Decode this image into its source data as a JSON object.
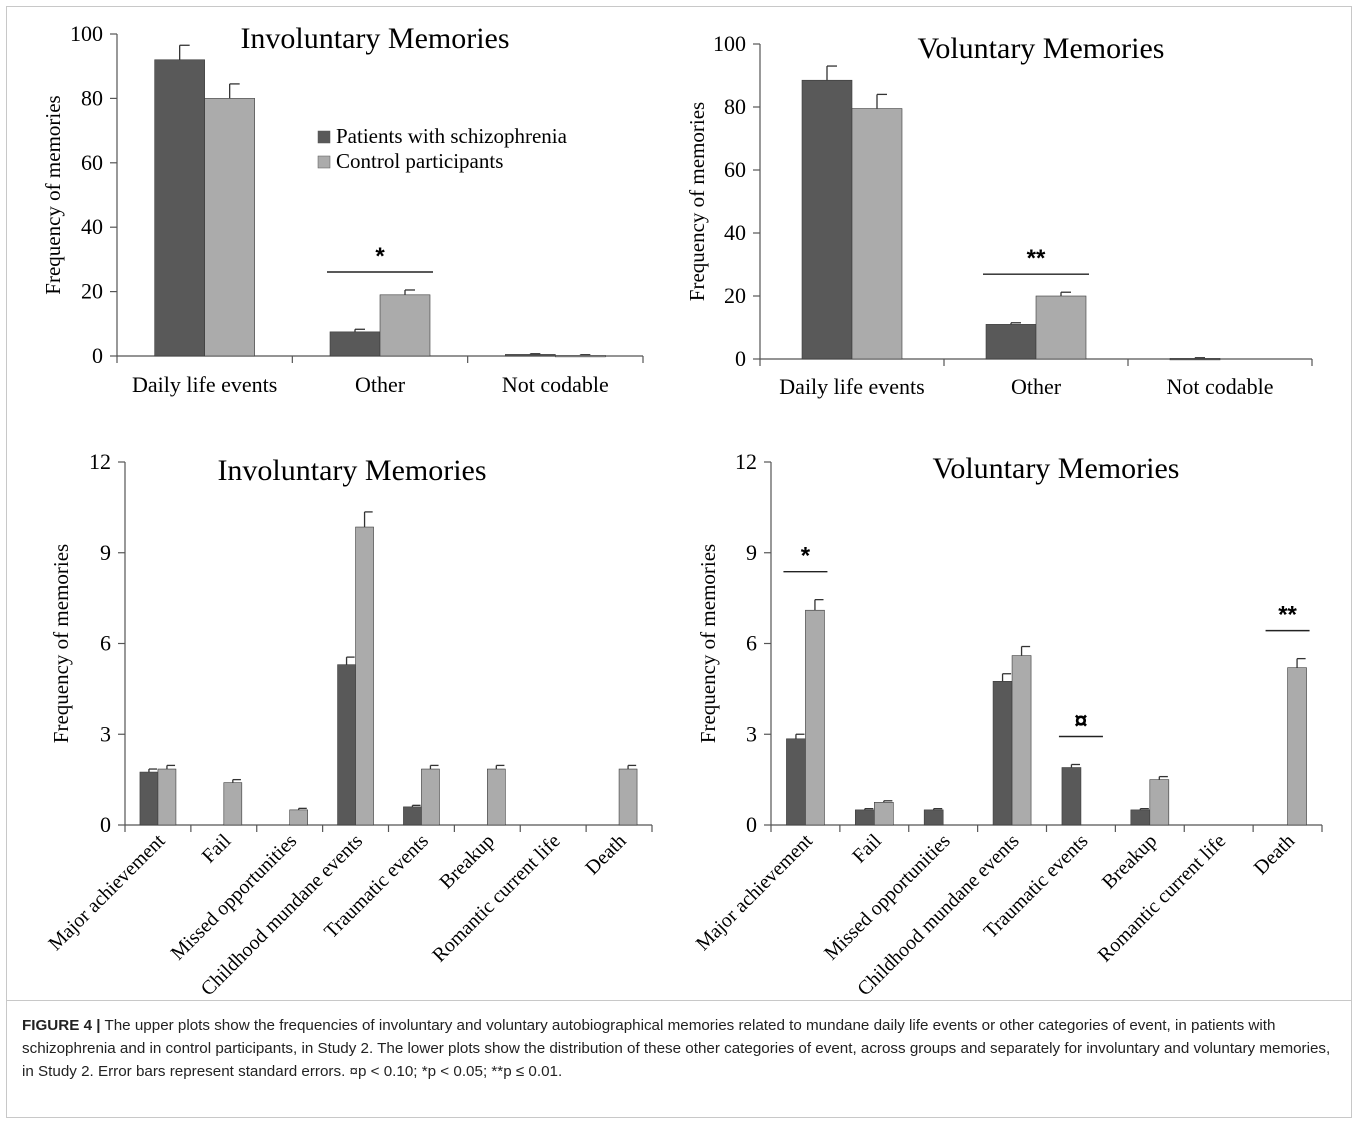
{
  "colors": {
    "patients": "#595959",
    "controls": "#ababab",
    "axis": "#555555",
    "text": "#000000"
  },
  "legend": {
    "patients": "Patients with schizophrenia",
    "controls": "Control participants"
  },
  "chart_data": [
    {
      "type": "bar",
      "title": "Involuntary Memories",
      "ylabel": "Frequency of memories",
      "ylim": [
        0,
        100
      ],
      "yticks": [
        "0",
        "20",
        "40",
        "60",
        "80",
        "100"
      ],
      "categories": [
        "Daily life events",
        "Other",
        "Not codable"
      ],
      "series": [
        {
          "name": "Patients with schizophrenia",
          "values": [
            92,
            7.5,
            0.5
          ],
          "errors": [
            4.5,
            0.8,
            0.2
          ]
        },
        {
          "name": "Control participants",
          "values": [
            80,
            19,
            0.2
          ],
          "errors": [
            4.5,
            1.5,
            0.2
          ]
        }
      ],
      "significance": [
        {
          "category": "Other",
          "label": "*"
        }
      ],
      "legend": "inside-upper-right"
    },
    {
      "type": "bar",
      "title": "Voluntary Memories",
      "ylabel": "Frequency of memories",
      "ylim": [
        0,
        100
      ],
      "yticks": [
        "0",
        "20",
        "40",
        "60",
        "80",
        "100"
      ],
      "categories": [
        "Daily life events",
        "Other",
        "Not codable"
      ],
      "series": [
        {
          "name": "Patients with schizophrenia",
          "values": [
            88.5,
            11,
            0.2
          ],
          "errors": [
            4.5,
            0.5,
            0.2
          ]
        },
        {
          "name": "Control participants",
          "values": [
            79.5,
            20,
            0
          ],
          "errors": [
            4.5,
            1.2,
            0
          ]
        }
      ],
      "significance": [
        {
          "category": "Other",
          "label": "**"
        }
      ]
    },
    {
      "type": "bar",
      "title": "Involuntary Memories",
      "ylabel": "Frequency of memories",
      "ylim": [
        0,
        12
      ],
      "yticks": [
        "0",
        "3",
        "6",
        "9",
        "12"
      ],
      "categories": [
        "Major achievement",
        "Fail",
        "Missed opportunities",
        "Childhood mundane events",
        "Traumatic events",
        "Breakup",
        "Romantic current life",
        "Death"
      ],
      "series": [
        {
          "name": "Patients with schizophrenia",
          "values": [
            1.75,
            0,
            0,
            5.3,
            0.6,
            0,
            0,
            0
          ],
          "errors": [
            0.1,
            0,
            0,
            0.25,
            0.05,
            0,
            0,
            0
          ]
        },
        {
          "name": "Control participants",
          "values": [
            1.85,
            1.4,
            0.5,
            9.85,
            1.85,
            1.85,
            0,
            1.85
          ],
          "errors": [
            0.12,
            0.1,
            0.05,
            0.5,
            0.12,
            0.12,
            0,
            0.12
          ]
        }
      ],
      "significance": []
    },
    {
      "type": "bar",
      "title": "Voluntary Memories",
      "ylabel": "Frequency of memories",
      "ylim": [
        0,
        12
      ],
      "yticks": [
        "0",
        "3",
        "6",
        "9",
        "12"
      ],
      "categories": [
        "Major achievement",
        "Fail",
        "Missed opportunities",
        "Childhood mundane events",
        "Traumatic events",
        "Breakup",
        "Romantic current life",
        "Death"
      ],
      "series": [
        {
          "name": "Patients with schizophrenia",
          "values": [
            2.85,
            0.5,
            0.5,
            4.75,
            1.9,
            0.5,
            0,
            0
          ],
          "errors": [
            0.15,
            0.04,
            0.04,
            0.25,
            0.1,
            0.04,
            0,
            0
          ]
        },
        {
          "name": "Control participants",
          "values": [
            7.1,
            0.75,
            0,
            5.6,
            0,
            1.5,
            0,
            5.2
          ],
          "errors": [
            0.35,
            0.05,
            0,
            0.3,
            0,
            0.1,
            0,
            0.3
          ]
        }
      ],
      "significance": [
        {
          "category": "Major achievement",
          "label": "*"
        },
        {
          "category": "Traumatic events",
          "label": "¤"
        },
        {
          "category": "Death",
          "label": "**"
        }
      ]
    }
  ],
  "caption": {
    "figure_label": "FIGURE 4 |",
    "text": " The upper plots show the frequencies of involuntary and voluntary autobiographical memories related to mundane daily life events or other categories of event, in patients with schizophrenia and in control participants, in Study 2. The lower plots show the distribution of these other categories of event, across groups and separately for involuntary and voluntary memories, in Study 2. Error bars represent standard errors. ¤p < 0.10; *p < 0.05; **p ≤ 0.01."
  }
}
